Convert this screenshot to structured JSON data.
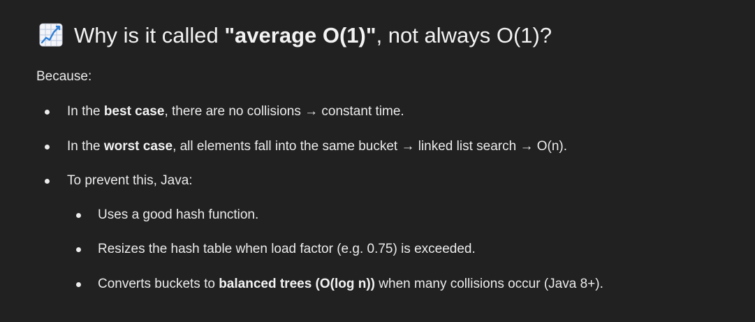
{
  "heading": {
    "emoji": "chart-increasing-icon",
    "prefix": "Why is it called ",
    "quoted": "\"average O(1)\"",
    "suffix": ", not always O(1)?"
  },
  "intro": "Because:",
  "bullets": [
    {
      "before": "In the ",
      "bold": "best case",
      "after": ", there are no collisions → constant time."
    },
    {
      "before": "In the ",
      "bold": "worst case",
      "after": ", all elements fall into the same bucket → linked list search → O(n)."
    },
    {
      "text": "To prevent this, Java:"
    }
  ],
  "sub_bullets": [
    {
      "text": "Uses a good hash function."
    },
    {
      "text": "Resizes the hash table when load factor (e.g. 0.75) is exceeded."
    },
    {
      "before": "Converts buckets to ",
      "bold": "balanced trees (O(log n))",
      "after": " when many collisions occur (Java 8+)."
    }
  ]
}
